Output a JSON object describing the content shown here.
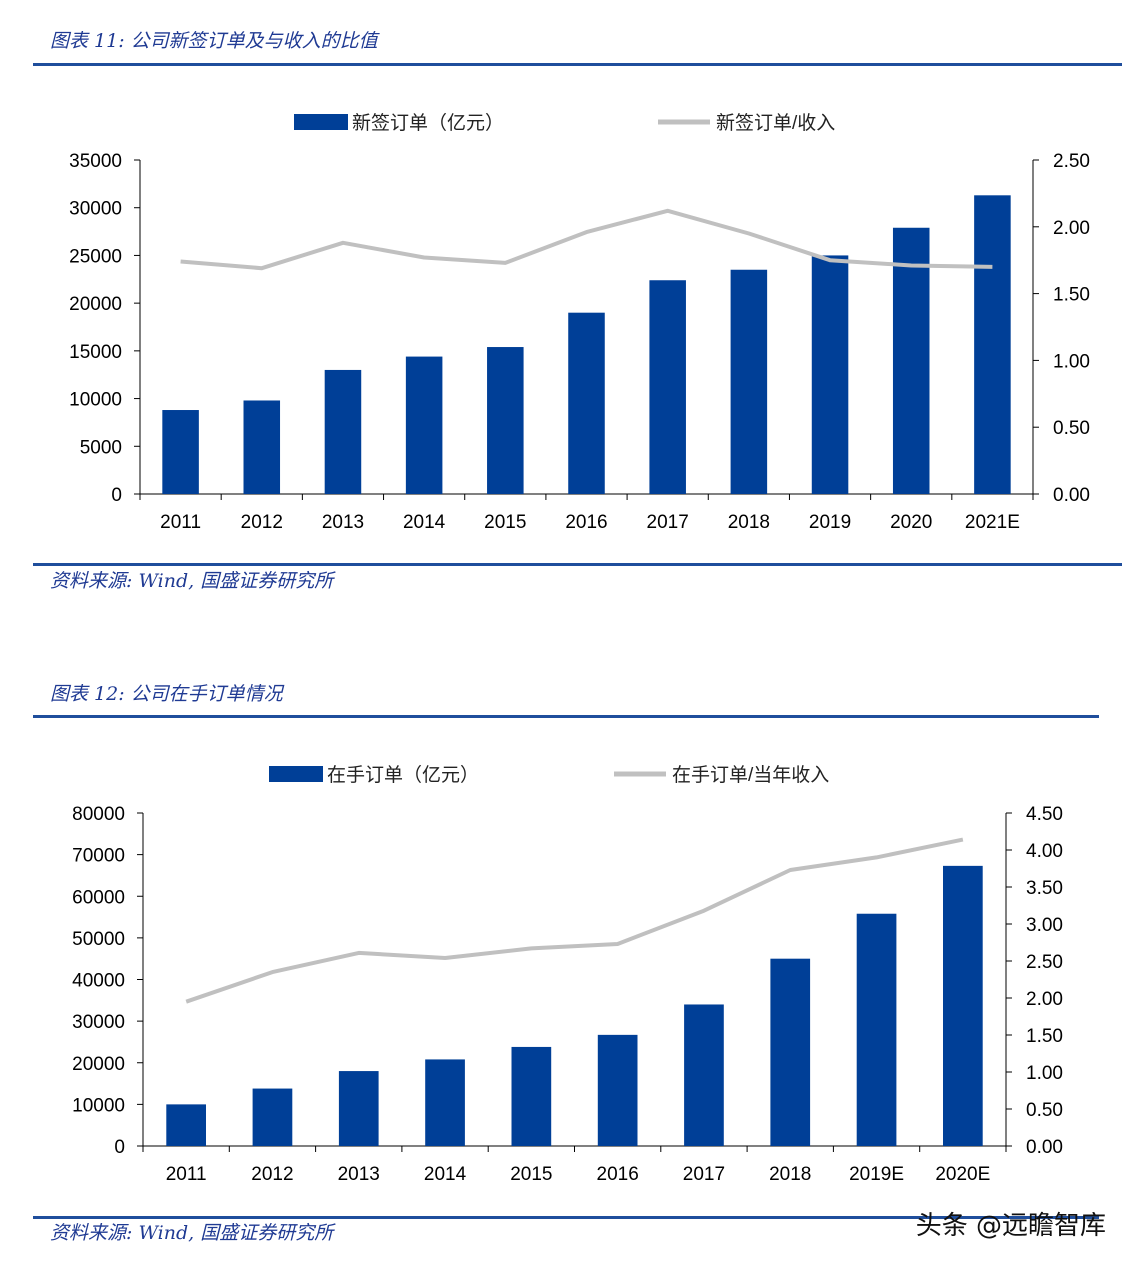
{
  "figure1": {
    "caption": "图表 11:  公司新签订单及与收入的比值",
    "source": "资料来源:  Wind,  国盛证券研究所"
  },
  "figure2": {
    "caption": "图表 12:  公司在手订单情况",
    "source": "资料来源:  Wind,  国盛证券研究所"
  },
  "watermark": "头条 @远瞻智库",
  "colors": {
    "bar": "#003f97",
    "line": "#c0c0c0",
    "rule": "#1f4e9c",
    "caption": "#1f3a93"
  },
  "chart_data": [
    {
      "type": "bar",
      "categories": [
        "2011",
        "2012",
        "2013",
        "2014",
        "2015",
        "2016",
        "2017",
        "2018",
        "2019",
        "2020",
        "2021E"
      ],
      "series": [
        {
          "name": "新签订单（亿元）",
          "type": "bar",
          "axis": "left",
          "values": [
            8800,
            9800,
            13000,
            14400,
            15400,
            19000,
            22400,
            23500,
            25000,
            27900,
            31300
          ]
        },
        {
          "name": "新签订单/收入",
          "type": "line",
          "axis": "right",
          "values": [
            1.74,
            1.69,
            1.88,
            1.77,
            1.73,
            1.96,
            2.12,
            1.95,
            1.75,
            1.71,
            1.7
          ]
        }
      ],
      "ylim": [
        0,
        35000
      ],
      "yticks": [
        0,
        5000,
        10000,
        15000,
        20000,
        25000,
        30000,
        35000
      ],
      "y2lim": [
        0,
        2.5
      ],
      "y2ticks": [
        "0.00",
        "0.50",
        "1.00",
        "1.50",
        "2.00",
        "2.50"
      ],
      "legend_placement": "top"
    },
    {
      "type": "bar",
      "categories": [
        "2011",
        "2012",
        "2013",
        "2014",
        "2015",
        "2016",
        "2017",
        "2018",
        "2019E",
        "2020E"
      ],
      "series": [
        {
          "name": "在手订单（亿元）",
          "type": "bar",
          "axis": "left",
          "values": [
            10000,
            13800,
            18000,
            20800,
            23800,
            26700,
            34000,
            45000,
            55800,
            67300
          ]
        },
        {
          "name": "在手订单/当年收入",
          "type": "line",
          "axis": "right",
          "values": [
            1.95,
            2.35,
            2.61,
            2.54,
            2.67,
            2.73,
            3.18,
            3.73,
            3.9,
            4.14
          ]
        }
      ],
      "ylim": [
        0,
        80000
      ],
      "yticks": [
        0,
        10000,
        20000,
        30000,
        40000,
        50000,
        60000,
        70000,
        80000
      ],
      "y2lim": [
        0,
        4.5
      ],
      "y2ticks": [
        "0.00",
        "0.50",
        "1.00",
        "1.50",
        "2.00",
        "2.50",
        "3.00",
        "3.50",
        "4.00",
        "4.50"
      ],
      "legend_placement": "top"
    }
  ]
}
